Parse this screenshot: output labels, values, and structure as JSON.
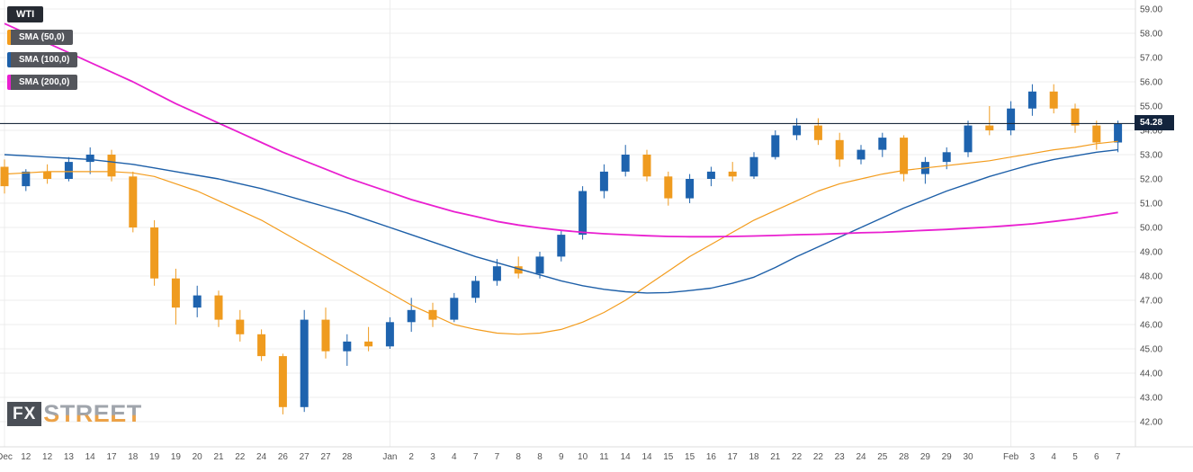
{
  "legend": {
    "symbol": "WTI",
    "overlays": [
      {
        "label": "SMA (50,0)",
        "color": "#f39c1d"
      },
      {
        "label": "SMA (100,0)",
        "color": "#1d5fa8"
      },
      {
        "label": "SMA (200,0)",
        "color": "#e91fd0"
      }
    ]
  },
  "price_marker": {
    "value": "54.28"
  },
  "watermark": {
    "fx": "FX",
    "street": "STREET"
  },
  "chart_data": {
    "type": "candlestick",
    "title": "WTI with SMA(50), SMA(100), SMA(200) overlays",
    "ylabel": "Price (USD)",
    "ylim": [
      42.0,
      59.0
    ],
    "grid": true,
    "legend_position": "top-left",
    "last_price": 54.28,
    "y_ticks": [
      "59.00",
      "58.00",
      "57.00",
      "56.00",
      "55.00",
      "54.00",
      "53.00",
      "52.00",
      "51.00",
      "50.00",
      "49.00",
      "48.00",
      "47.00",
      "46.00",
      "45.00",
      "44.00",
      "43.00",
      "42.00"
    ],
    "x_labels": [
      "Dec",
      "12",
      "12",
      "13",
      "14",
      "17",
      "18",
      "19",
      "19",
      "20",
      "21",
      "22",
      "24",
      "26",
      "27",
      "27",
      "28",
      "",
      "Jan",
      "2",
      "3",
      "4",
      "7",
      "7",
      "8",
      "8",
      "9",
      "10",
      "11",
      "14",
      "14",
      "15",
      "15",
      "16",
      "17",
      "18",
      "21",
      "22",
      "22",
      "23",
      "24",
      "25",
      "28",
      "29",
      "29",
      "30",
      "",
      "Feb",
      "3",
      "4",
      "5",
      "6",
      "7"
    ],
    "ohlc_order": [
      "open",
      "high",
      "low",
      "close"
    ],
    "candles": [
      [
        52.5,
        52.8,
        51.4,
        51.7
      ],
      [
        51.7,
        52.4,
        51.5,
        52.3
      ],
      [
        52.3,
        52.6,
        51.8,
        52.0
      ],
      [
        52.0,
        52.9,
        51.9,
        52.7
      ],
      [
        52.7,
        53.3,
        52.2,
        53.0
      ],
      [
        53.0,
        53.2,
        51.9,
        52.1
      ],
      [
        52.1,
        52.3,
        49.8,
        50.0
      ],
      [
        50.0,
        50.3,
        47.6,
        47.9
      ],
      [
        47.9,
        48.3,
        46.0,
        46.7
      ],
      [
        46.7,
        47.6,
        46.3,
        47.2
      ],
      [
        47.2,
        47.4,
        45.9,
        46.2
      ],
      [
        46.2,
        46.6,
        45.3,
        45.6
      ],
      [
        45.6,
        45.8,
        44.5,
        44.7
      ],
      [
        44.7,
        44.8,
        42.3,
        42.6
      ],
      [
        42.6,
        46.6,
        42.4,
        46.2
      ],
      [
        46.2,
        46.7,
        44.6,
        44.9
      ],
      [
        44.9,
        45.6,
        44.3,
        45.3
      ],
      [
        45.3,
        45.9,
        44.9,
        45.1
      ],
      [
        45.1,
        46.3,
        45.0,
        46.1
      ],
      [
        46.1,
        47.1,
        45.7,
        46.6
      ],
      [
        46.6,
        46.9,
        45.9,
        46.2
      ],
      [
        46.2,
        47.3,
        46.1,
        47.1
      ],
      [
        47.1,
        48.0,
        46.9,
        47.8
      ],
      [
        47.8,
        48.7,
        47.6,
        48.4
      ],
      [
        48.4,
        48.8,
        47.9,
        48.1
      ],
      [
        48.1,
        49.0,
        47.9,
        48.8
      ],
      [
        48.8,
        49.9,
        48.6,
        49.7
      ],
      [
        49.7,
        51.7,
        49.5,
        51.5
      ],
      [
        51.5,
        52.6,
        51.2,
        52.3
      ],
      [
        52.3,
        53.4,
        52.1,
        53.0
      ],
      [
        53.0,
        53.2,
        51.9,
        52.1
      ],
      [
        52.1,
        52.3,
        50.9,
        51.2
      ],
      [
        51.2,
        52.2,
        51.0,
        52.0
      ],
      [
        52.0,
        52.5,
        51.7,
        52.3
      ],
      [
        52.3,
        52.7,
        51.9,
        52.1
      ],
      [
        52.1,
        53.1,
        52.0,
        52.9
      ],
      [
        52.9,
        54.0,
        52.8,
        53.8
      ],
      [
        53.8,
        54.5,
        53.6,
        54.2
      ],
      [
        54.2,
        54.5,
        53.4,
        53.6
      ],
      [
        53.6,
        53.9,
        52.5,
        52.8
      ],
      [
        52.8,
        53.4,
        52.6,
        53.2
      ],
      [
        53.2,
        53.9,
        52.9,
        53.7
      ],
      [
        53.7,
        53.8,
        51.9,
        52.2
      ],
      [
        52.2,
        52.9,
        51.8,
        52.7
      ],
      [
        52.7,
        53.3,
        52.4,
        53.1
      ],
      [
        53.1,
        54.4,
        52.9,
        54.2
      ],
      [
        54.2,
        55.0,
        53.8,
        54.0
      ],
      [
        54.0,
        55.2,
        53.8,
        54.9
      ],
      [
        54.9,
        55.9,
        54.6,
        55.6
      ],
      [
        55.6,
        55.9,
        54.7,
        54.9
      ],
      [
        54.9,
        55.1,
        53.9,
        54.2
      ],
      [
        54.2,
        54.4,
        53.2,
        53.5
      ],
      [
        53.5,
        54.4,
        53.1,
        54.28
      ]
    ],
    "series": [
      {
        "name": "SMA (50,0)",
        "values": [
          52.2,
          52.25,
          52.3,
          52.3,
          52.3,
          52.3,
          52.25,
          52.1,
          51.8,
          51.5,
          51.1,
          50.7,
          50.3,
          49.8,
          49.3,
          48.8,
          48.3,
          47.8,
          47.3,
          46.8,
          46.4,
          46.0,
          45.8,
          45.65,
          45.6,
          45.65,
          45.8,
          46.1,
          46.5,
          47.0,
          47.6,
          48.2,
          48.8,
          49.3,
          49.8,
          50.3,
          50.7,
          51.1,
          51.5,
          51.8,
          52.0,
          52.2,
          52.35,
          52.45,
          52.55,
          52.65,
          52.75,
          52.9,
          53.05,
          53.2,
          53.3,
          53.45,
          53.55
        ]
      },
      {
        "name": "SMA (100,0)",
        "values": [
          53.0,
          52.95,
          52.9,
          52.85,
          52.8,
          52.7,
          52.6,
          52.45,
          52.3,
          52.15,
          52.0,
          51.8,
          51.6,
          51.35,
          51.1,
          50.85,
          50.6,
          50.3,
          50.0,
          49.7,
          49.4,
          49.1,
          48.8,
          48.55,
          48.3,
          48.05,
          47.8,
          47.6,
          47.45,
          47.35,
          47.3,
          47.32,
          47.4,
          47.5,
          47.7,
          47.95,
          48.35,
          48.8,
          49.2,
          49.6,
          50.0,
          50.4,
          50.8,
          51.15,
          51.5,
          51.8,
          52.1,
          52.35,
          52.6,
          52.8,
          52.95,
          53.1,
          53.2
        ]
      },
      {
        "name": "SMA (200,0)",
        "values": [
          58.4,
          58.0,
          57.6,
          57.2,
          56.8,
          56.4,
          56.0,
          55.55,
          55.1,
          54.7,
          54.3,
          53.9,
          53.5,
          53.1,
          52.75,
          52.4,
          52.05,
          51.75,
          51.45,
          51.15,
          50.9,
          50.65,
          50.45,
          50.25,
          50.1,
          49.98,
          49.88,
          49.8,
          49.74,
          49.7,
          49.66,
          49.63,
          49.62,
          49.62,
          49.63,
          49.65,
          49.67,
          49.7,
          49.72,
          49.75,
          49.78,
          49.8,
          49.84,
          49.88,
          49.92,
          49.97,
          50.02,
          50.08,
          50.15,
          50.25,
          50.35,
          50.48,
          50.62
        ]
      }
    ],
    "colors": {
      "up": "#1e63ae",
      "down": "#ef9b1f",
      "sma50": "#f39c1d",
      "sma100": "#1d5fa8",
      "sma200": "#e91fd0",
      "grid": "#ececec",
      "axis_line": "#dcdcdc",
      "axis_text": "#4a4a4a",
      "xaxis_text": "#555555",
      "price_line": "#1b2b3d"
    }
  }
}
